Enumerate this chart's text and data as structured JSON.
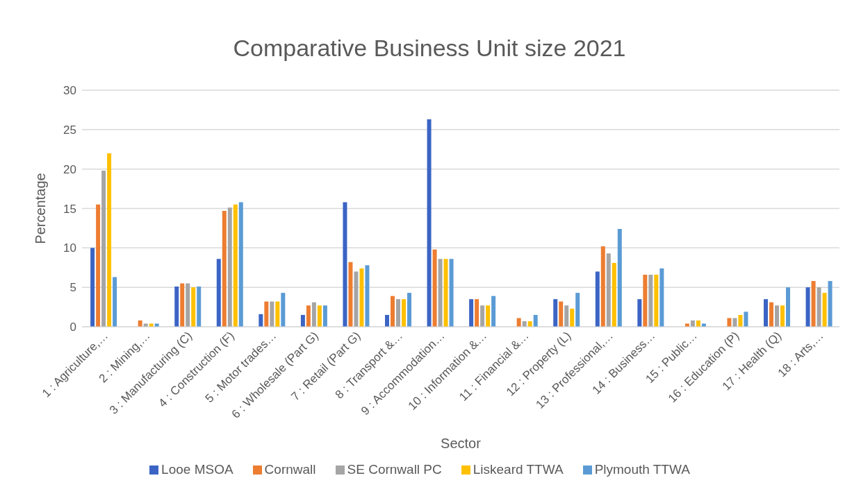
{
  "chart_data": {
    "type": "bar",
    "title": "Comparative Business Unit size 2021",
    "xlabel": "Sector",
    "ylabel": "Percentage",
    "categories": [
      "1 : Agriculture,…",
      "2 : Mining,…",
      "3 : Manufacturing (C)",
      "4 : Construction (F)",
      "5 : Motor trades…",
      "6 : Wholesale (Part G)",
      "7 : Retail (Part G)",
      "8 : Transport &…",
      "9 : Accommodation…",
      "10 : Information &…",
      "11 : Financial &…",
      "12 : Property (L)",
      "13 : Professional,…",
      "14 : Business…",
      "15 : Public…",
      "16 : Education (P)",
      "17 : Health (Q)",
      "18 : Arts,…"
    ],
    "series": [
      {
        "name": "Looe MSOA",
        "color": "#3b64c4",
        "values": [
          10,
          0,
          5.1,
          8.6,
          1.6,
          1.5,
          15.8,
          1.5,
          26.3,
          3.5,
          0,
          3.5,
          7.0,
          3.5,
          0,
          0,
          3.5,
          5.0
        ]
      },
      {
        "name": "Cornwall",
        "color": "#ed7d31",
        "values": [
          15.5,
          0.8,
          5.5,
          14.7,
          3.2,
          2.7,
          8.2,
          3.9,
          9.8,
          3.5,
          1.1,
          3.2,
          10.2,
          6.6,
          0.4,
          1.1,
          3.1,
          5.8
        ]
      },
      {
        "name": "SE Cornwall PC",
        "color": "#a5a5a5",
        "values": [
          19.8,
          0.4,
          5.5,
          15.1,
          3.2,
          3.1,
          7.0,
          3.5,
          8.6,
          2.7,
          0.7,
          2.7,
          9.3,
          6.6,
          0.8,
          1.1,
          2.7,
          5.0
        ]
      },
      {
        "name": "Liskeard TTWA",
        "color": "#ffc000",
        "values": [
          22,
          0.4,
          5.0,
          15.5,
          3.2,
          2.7,
          7.4,
          3.5,
          8.6,
          2.7,
          0.7,
          2.3,
          8.1,
          6.6,
          0.8,
          1.5,
          2.7,
          4.3
        ]
      },
      {
        "name": "Plymouth TTWA",
        "color": "#5b9bd5",
        "values": [
          6.3,
          0.4,
          5.1,
          15.8,
          4.3,
          2.7,
          7.8,
          4.3,
          8.6,
          3.9,
          1.5,
          4.3,
          12.4,
          7.4,
          0.4,
          1.9,
          5.0,
          5.8
        ]
      }
    ],
    "ylim": [
      0,
      30
    ],
    "yticks": [
      0,
      5,
      10,
      15,
      20,
      25,
      30
    ],
    "grid": "y",
    "legend": "bottom"
  }
}
